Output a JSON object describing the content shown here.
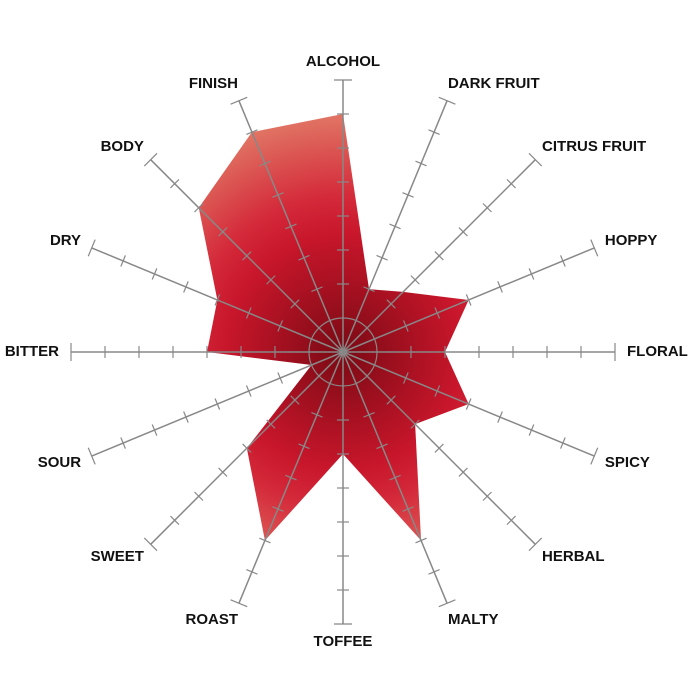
{
  "chart_data": {
    "type": "radar",
    "categories": [
      "ALCOHOL",
      "DARK FRUIT",
      "CITRUS FRUIT",
      "HOPPY",
      "FLORAL",
      "SPICY",
      "HERBAL",
      "MALTY",
      "TOFFEE",
      "ROAST",
      "SWEET",
      "SOUR",
      "BITTER",
      "DRY",
      "BODY",
      "FINISH"
    ],
    "values": [
      7,
      2,
      2.5,
      4,
      3,
      4,
      3,
      6,
      3,
      6,
      4,
      1,
      4,
      4,
      6,
      7
    ],
    "rlim": [
      0,
      8
    ],
    "rticks": [
      1,
      2,
      3,
      4,
      5,
      6,
      7,
      8
    ],
    "color": "#c8162b"
  }
}
